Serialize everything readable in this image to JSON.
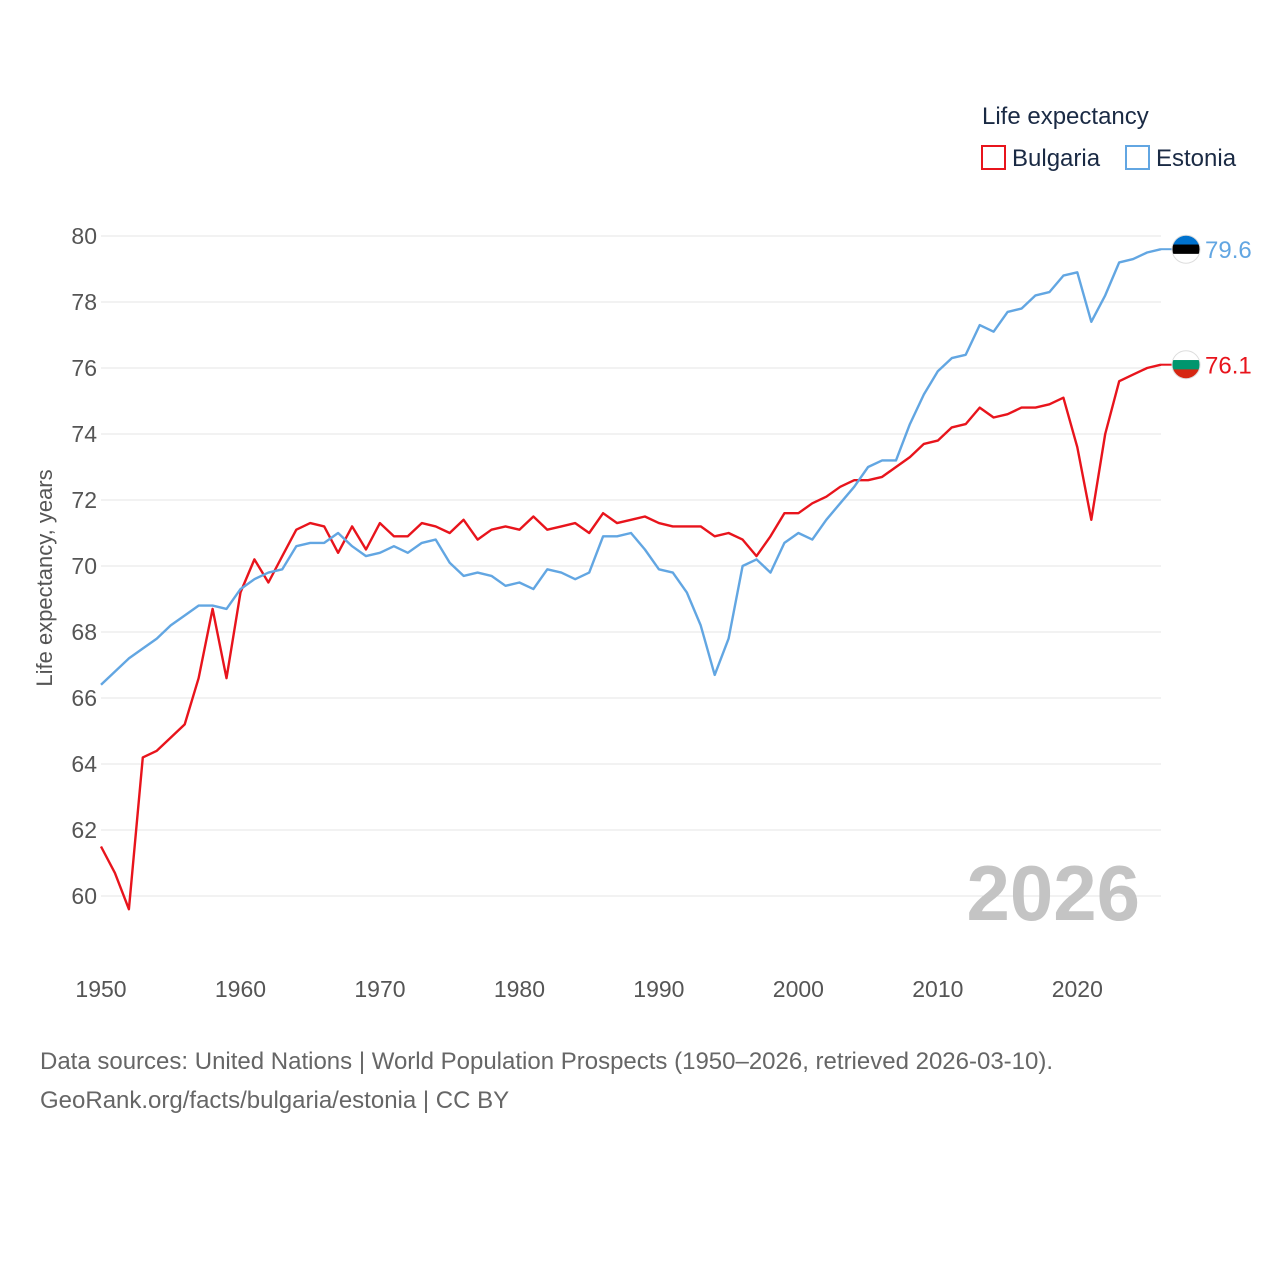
{
  "chart_data": {
    "type": "line",
    "title": "",
    "xlabel": "",
    "ylabel": "Life expectancy, years",
    "xlim": [
      1950,
      2026
    ],
    "ylim": [
      59,
      80.5
    ],
    "yticks": [
      60,
      62,
      64,
      66,
      68,
      70,
      72,
      74,
      76,
      78,
      80
    ],
    "xticks": [
      1950,
      1960,
      1970,
      1980,
      1990,
      2000,
      2010,
      2020
    ],
    "x": [
      1950,
      1951,
      1952,
      1953,
      1954,
      1955,
      1956,
      1957,
      1958,
      1959,
      1960,
      1961,
      1962,
      1963,
      1964,
      1965,
      1966,
      1967,
      1968,
      1969,
      1970,
      1971,
      1972,
      1973,
      1974,
      1975,
      1976,
      1977,
      1978,
      1979,
      1980,
      1981,
      1982,
      1983,
      1984,
      1985,
      1986,
      1987,
      1988,
      1989,
      1990,
      1991,
      1992,
      1993,
      1994,
      1995,
      1996,
      1997,
      1998,
      1999,
      2000,
      2001,
      2002,
      2003,
      2004,
      2005,
      2006,
      2007,
      2008,
      2009,
      2010,
      2011,
      2012,
      2013,
      2014,
      2015,
      2016,
      2017,
      2018,
      2019,
      2020,
      2021,
      2022,
      2023,
      2024,
      2025,
      2026
    ],
    "series": [
      {
        "name": "Bulgaria",
        "color": "#e8141c",
        "end_value": "76.1",
        "values": [
          61.5,
          60.7,
          59.6,
          64.2,
          64.4,
          64.8,
          65.2,
          66.6,
          68.7,
          66.6,
          69.2,
          70.2,
          69.5,
          70.3,
          71.1,
          71.3,
          71.2,
          70.4,
          71.2,
          70.5,
          71.3,
          70.9,
          70.9,
          71.3,
          71.2,
          71.0,
          71.4,
          70.8,
          71.1,
          71.2,
          71.1,
          71.5,
          71.1,
          71.2,
          71.3,
          71.0,
          71.6,
          71.3,
          71.4,
          71.5,
          71.3,
          71.2,
          71.2,
          71.2,
          70.9,
          71.0,
          70.8,
          70.3,
          70.9,
          71.6,
          71.6,
          71.9,
          72.1,
          72.4,
          72.6,
          72.6,
          72.7,
          73.0,
          73.3,
          73.7,
          73.8,
          74.2,
          74.3,
          74.8,
          74.5,
          74.6,
          74.8,
          74.8,
          74.9,
          75.1,
          73.6,
          71.4,
          74.0,
          75.6,
          75.8,
          76.0,
          76.1
        ]
      },
      {
        "name": "Estonia",
        "color": "#62a6e2",
        "end_value": "79.6",
        "values": [
          66.4,
          66.8,
          67.2,
          67.5,
          67.8,
          68.2,
          68.5,
          68.8,
          68.8,
          68.7,
          69.3,
          69.6,
          69.8,
          69.9,
          70.6,
          70.7,
          70.7,
          71.0,
          70.6,
          70.3,
          70.4,
          70.6,
          70.4,
          70.7,
          70.8,
          70.1,
          69.7,
          69.8,
          69.7,
          69.4,
          69.5,
          69.3,
          69.9,
          69.8,
          69.6,
          69.8,
          70.9,
          70.9,
          71.0,
          70.5,
          69.9,
          69.8,
          69.2,
          68.2,
          66.7,
          67.8,
          70.0,
          70.2,
          69.8,
          70.7,
          71.0,
          70.8,
          71.4,
          71.9,
          72.4,
          73.0,
          73.2,
          73.2,
          74.3,
          75.2,
          75.9,
          76.3,
          76.4,
          77.3,
          77.1,
          77.7,
          77.8,
          78.2,
          78.3,
          78.8,
          78.9,
          77.4,
          78.2,
          79.2,
          79.3,
          79.5,
          79.6
        ]
      }
    ],
    "legend_title": "Life expectancy",
    "legend_position": "top-right",
    "current_year": "2026"
  },
  "source": {
    "line1": "Data sources: United Nations | World Population Prospects (1950–2026, retrieved 2026-03-10).",
    "line2": "GeoRank.org/facts/bulgaria/estonia | CC BY"
  },
  "flags": {
    "estonia": [
      "#0072ce",
      "#000000",
      "#ffffff"
    ],
    "bulgaria": [
      "#ffffff",
      "#00966e",
      "#d62612"
    ]
  }
}
